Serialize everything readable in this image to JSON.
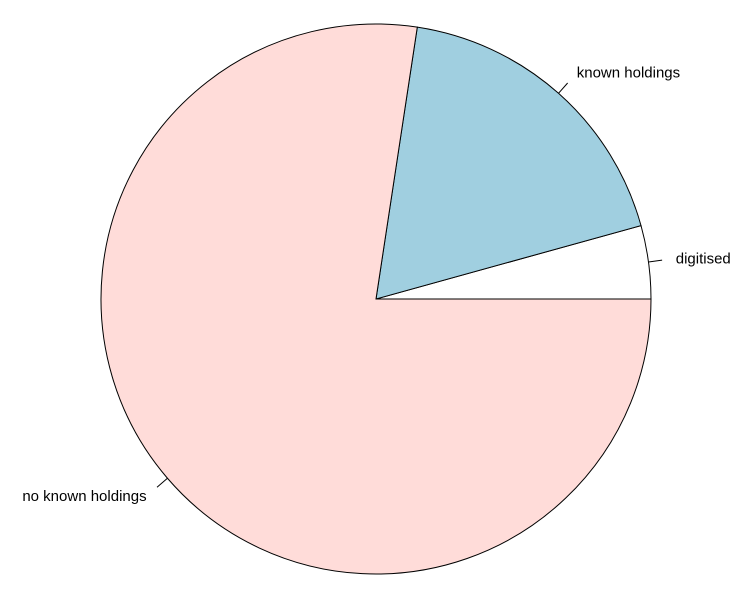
{
  "chart_data": {
    "type": "pie",
    "title": "",
    "slices": [
      {
        "label": "digitised",
        "value": 4.3,
        "color": "#ffffff"
      },
      {
        "label": "known holdings",
        "value": 18.3,
        "color": "#a0cfe0"
      },
      {
        "label": "no known holdings",
        "value": 77.4,
        "color": "#ffdcd9"
      }
    ],
    "start_angle_deg": 0,
    "direction": "counterclockwise",
    "border_color": "#000000"
  }
}
